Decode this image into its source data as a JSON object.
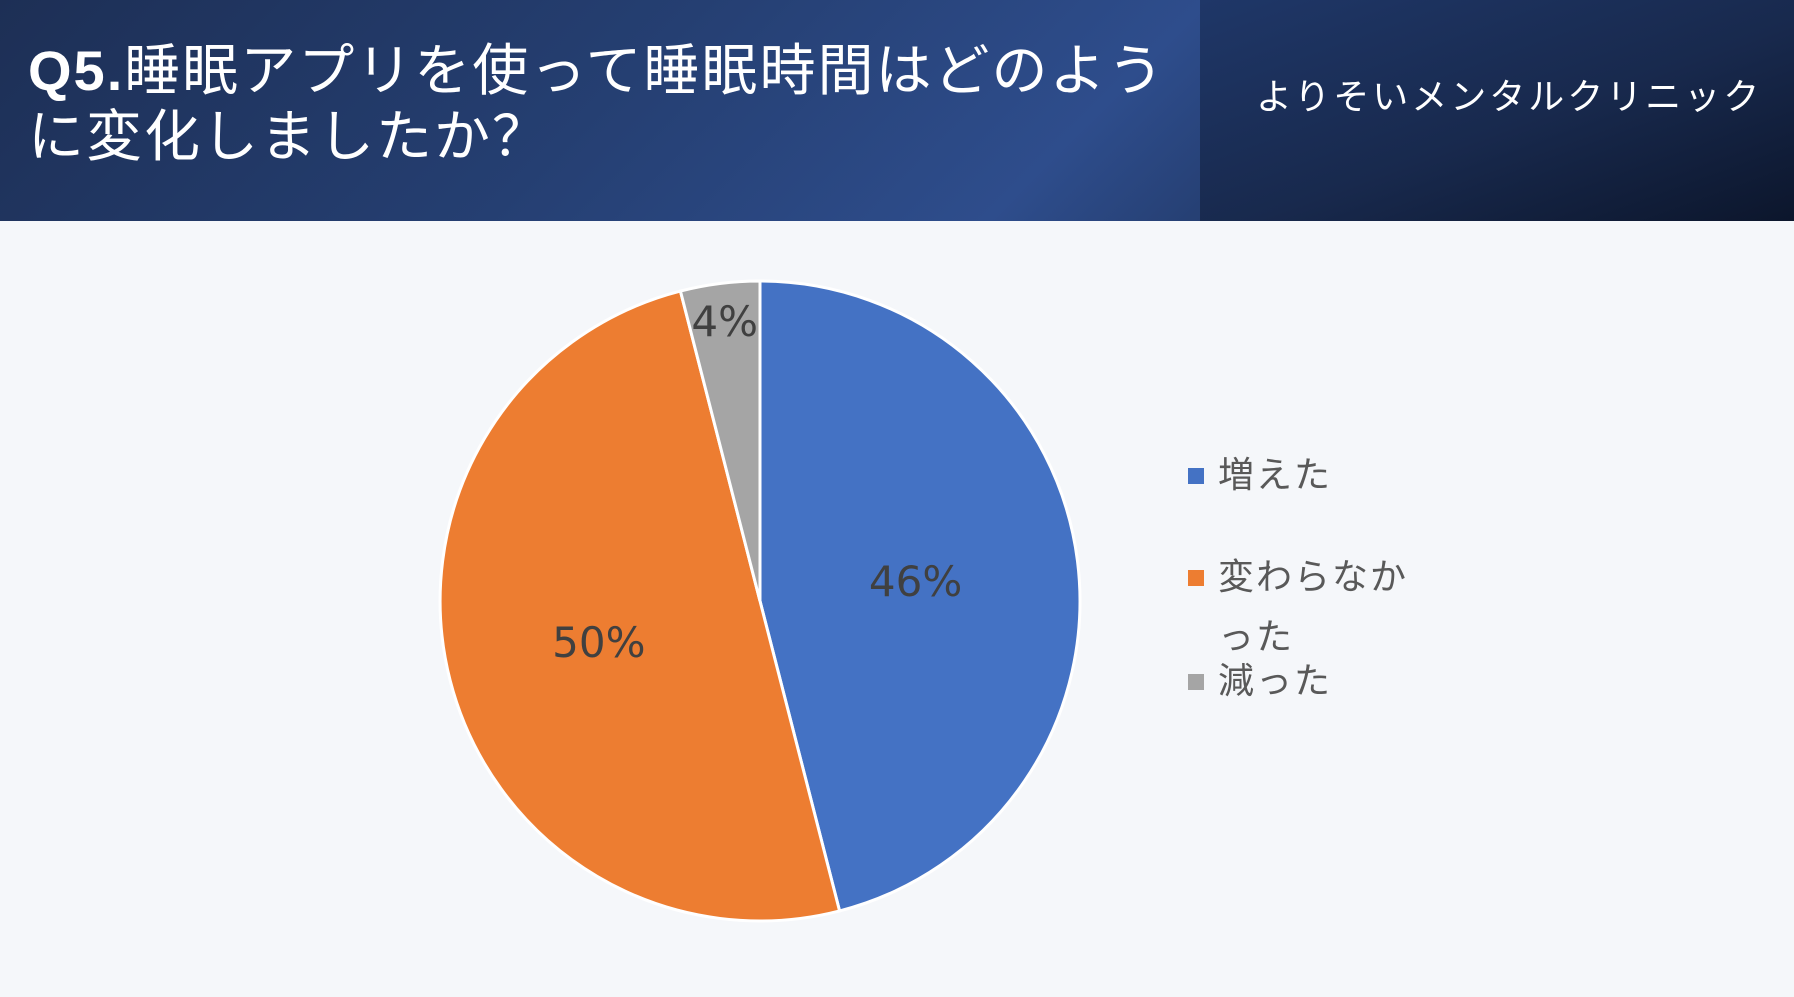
{
  "header": {
    "title_qnum": "Q5.",
    "title_text": "睡眠アプリを使って睡眠時間はどのように変化しましたか？",
    "org": "よりそいメンタルクリニック"
  },
  "chart_data": {
    "type": "pie",
    "categories": [
      "増えた",
      "変わらなかった",
      "減った"
    ],
    "values": [
      46,
      50,
      4
    ],
    "labels": [
      "46%",
      "50%",
      "4%"
    ],
    "colors": [
      "#4472c4",
      "#ed7d31",
      "#a5a5a5"
    ],
    "legend_position": "right"
  },
  "legend": {
    "items": [
      "増えた",
      "変わらなかった",
      "減った"
    ]
  }
}
